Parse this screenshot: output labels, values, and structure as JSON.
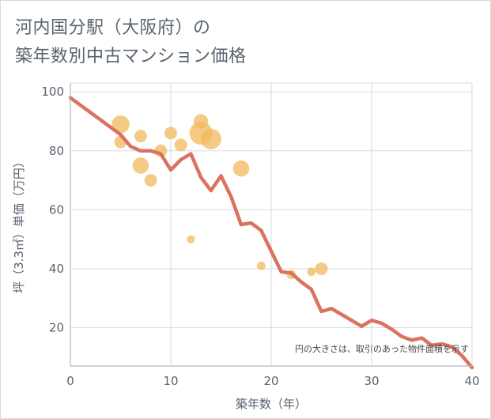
{
  "title": {
    "line1": "河内国分駅（大阪府）の",
    "line2": "築年数別中古マンション価格"
  },
  "colors": {
    "line": "#d9735e",
    "bubble": "#f2b85c",
    "grid": "#d3dbe3",
    "axis": "#b0bac4"
  },
  "chart_data": {
    "type": "scatter",
    "xlabel": "築年数（年）",
    "ylabel": "坪（3.3㎡）単価（万円）",
    "xlim": [
      0,
      40
    ],
    "ylim": [
      7,
      103
    ],
    "x_ticks": [
      0,
      10,
      20,
      30,
      40
    ],
    "y_ticks": [
      20,
      40,
      60,
      80,
      100
    ],
    "x_tick_labels": [
      "0",
      "10",
      "20",
      "30",
      "40"
    ],
    "y_tick_labels": [
      "20",
      "40",
      "60",
      "80",
      "100"
    ],
    "grid": true,
    "note": "円の大きさは、取引のあった物件面積を示す",
    "series": [
      {
        "kind": "bubble",
        "points": [
          {
            "x": 5,
            "y": 89,
            "size": 3
          },
          {
            "x": 5,
            "y": 83,
            "size": 1.5
          },
          {
            "x": 7,
            "y": 85,
            "size": 1.5
          },
          {
            "x": 7,
            "y": 75,
            "size": 2.5
          },
          {
            "x": 8,
            "y": 70,
            "size": 1.5
          },
          {
            "x": 9,
            "y": 80,
            "size": 1.5
          },
          {
            "x": 10,
            "y": 86,
            "size": 1.5
          },
          {
            "x": 11,
            "y": 82,
            "size": 1.5
          },
          {
            "x": 12,
            "y": 50,
            "size": 0.6
          },
          {
            "x": 13,
            "y": 86,
            "size": 5
          },
          {
            "x": 13,
            "y": 90,
            "size": 2
          },
          {
            "x": 14,
            "y": 84,
            "size": 4
          },
          {
            "x": 17,
            "y": 74,
            "size": 2.5
          },
          {
            "x": 19,
            "y": 41,
            "size": 0.7
          },
          {
            "x": 22,
            "y": 38,
            "size": 0.8
          },
          {
            "x": 24,
            "y": 39,
            "size": 0.7
          },
          {
            "x": 25,
            "y": 40,
            "size": 1.5
          }
        ]
      },
      {
        "kind": "line",
        "x": [
          0,
          1,
          2,
          3,
          4,
          5,
          6,
          7,
          8,
          9,
          10,
          11,
          12,
          13,
          14,
          15,
          16,
          17,
          18,
          19,
          20,
          21,
          22,
          23,
          24,
          25,
          26,
          27,
          28,
          29,
          30,
          31,
          32,
          33,
          34,
          35,
          36,
          37,
          38,
          39,
          40
        ],
        "y": [
          98,
          95.5,
          93,
          90.5,
          88,
          85.5,
          81.5,
          80,
          80,
          79,
          73.5,
          77,
          79,
          71,
          66.5,
          71.5,
          64.5,
          55,
          55.5,
          53,
          46,
          39,
          38.5,
          35.5,
          33,
          25.5,
          26.5,
          24.5,
          22.5,
          20.5,
          22.5,
          21.5,
          19.5,
          17,
          15.8,
          16.5,
          14,
          14.5,
          13.5,
          10.5,
          6.5
        ]
      }
    ]
  }
}
